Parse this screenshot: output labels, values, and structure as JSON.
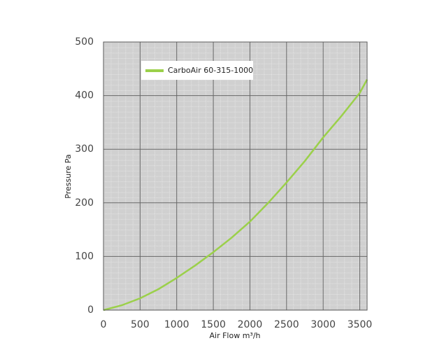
{
  "chart_data": {
    "type": "line",
    "x_label": "Air Flow m³/h",
    "y_label": "Pressure Pa",
    "x": [
      0,
      250,
      500,
      750,
      1000,
      1250,
      1500,
      1750,
      2000,
      2250,
      2500,
      2750,
      3000,
      3250,
      3500,
      3600
    ],
    "series": [
      {
        "name": "CarboAir 60-315-1000",
        "color": "#9bd04a",
        "values": [
          0,
          9,
          22,
          39,
          60,
          83,
          108,
          135,
          165,
          200,
          238,
          278,
          322,
          362,
          405,
          430
        ]
      }
    ],
    "xlim": [
      0,
      3600
    ],
    "xticks": [
      0,
      500,
      1000,
      1500,
      2000,
      2500,
      3000,
      3500
    ],
    "ylim": [
      0,
      500
    ],
    "yticks": [
      0,
      100,
      200,
      300,
      400,
      500
    ],
    "grid": true,
    "legend": "upper left"
  }
}
